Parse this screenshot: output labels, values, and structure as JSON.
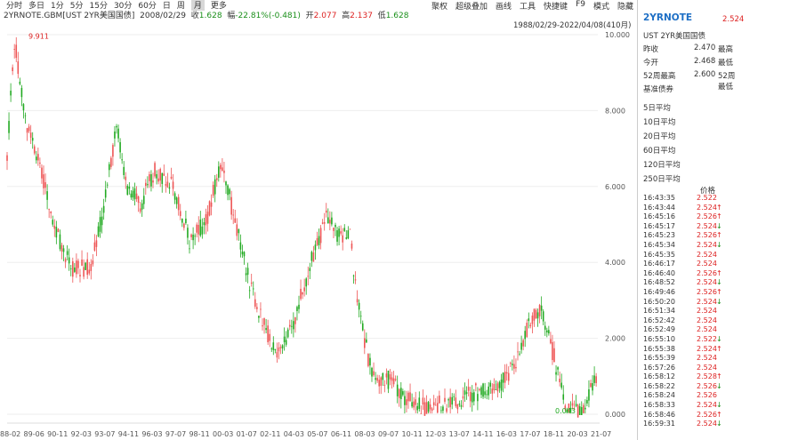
{
  "periods": [
    "分时",
    "多日",
    "1分",
    "5分",
    "15分",
    "30分",
    "60分",
    "日",
    "周",
    "月",
    "更多"
  ],
  "active": "月",
  "tools": [
    "聚权",
    "超级叠加",
    "画线",
    "工具",
    "快捷键",
    "F9",
    "模式",
    "隐藏"
  ],
  "info": {
    "s": "2YRNOTE.GBM[UST 2YR美国国债]",
    "d": "2008/02/29",
    "c": "收",
    "cv": "1.628",
    "f": "幅",
    "fv": "-22.81%(-0.481)",
    "o": "开",
    "ov": "2.077",
    "h": "高",
    "hv": "2.137",
    "l": "低",
    "lv": "1.628"
  },
  "range": "1988/02/29-2022/04/08(410月)",
  "chart_data": {
    "type": "candlestick",
    "yticks": [
      0,
      2,
      4,
      6,
      8,
      10
    ],
    "ylabels": [
      "0.000",
      "2.000",
      "4.000",
      "6.000",
      "8.000",
      "10.000"
    ],
    "xlabels": [
      "88-02",
      "89-06",
      "90-11",
      "92-03",
      "93-07",
      "94-11",
      "96-03",
      "97-07",
      "98-11",
      "00-03",
      "01-07",
      "02-11",
      "04-03",
      "05-07",
      "06-11",
      "08-03",
      "09-07",
      "10-11",
      "12-03",
      "13-07",
      "14-11",
      "16-03",
      "17-07",
      "18-11",
      "20-03",
      "21-07"
    ],
    "max": "9.911",
    "min": "0.043"
  },
  "side": {
    "sym": "2YRNOTE",
    "price": "2.524",
    "name": "UST 2YR美国国债",
    "q": [
      {
        "a": "昨收",
        "b": "2.470",
        "c": "最高"
      },
      {
        "a": "今开",
        "b": "2.468",
        "c": "最低"
      },
      {
        "a": "52周最高",
        "b": "2.600",
        "c": "52周最低"
      },
      {
        "a": "基准债券",
        "b": "",
        "c": ""
      }
    ],
    "avgs": [
      "5日平均",
      "10日平均",
      "20日平均",
      "60日平均",
      "120日平均",
      "250日平均"
    ],
    "ph": "价格",
    "ticks": [
      [
        "16:43:35",
        "2.522",
        ""
      ],
      [
        "16:43:44",
        "2.524",
        "u"
      ],
      [
        "16:45:16",
        "2.526",
        "u"
      ],
      [
        "16:45:17",
        "2.524",
        "d"
      ],
      [
        "16:45:23",
        "2.526",
        "u"
      ],
      [
        "16:45:34",
        "2.524",
        "d"
      ],
      [
        "16:45:35",
        "2.524",
        ""
      ],
      [
        "16:46:17",
        "2.524",
        ""
      ],
      [
        "16:46:40",
        "2.526",
        "u"
      ],
      [
        "16:48:52",
        "2.524",
        "d"
      ],
      [
        "16:49:46",
        "2.526",
        "u"
      ],
      [
        "16:50:20",
        "2.524",
        "d"
      ],
      [
        "16:51:34",
        "2.524",
        ""
      ],
      [
        "16:52:42",
        "2.524",
        ""
      ],
      [
        "16:52:49",
        "2.524",
        ""
      ],
      [
        "16:55:10",
        "2.522",
        "d"
      ],
      [
        "16:55:38",
        "2.524",
        "u"
      ],
      [
        "16:55:39",
        "2.524",
        ""
      ],
      [
        "16:57:26",
        "2.524",
        ""
      ],
      [
        "16:58:12",
        "2.528",
        "u"
      ],
      [
        "16:58:22",
        "2.526",
        "d"
      ],
      [
        "16:58:24",
        "2.526",
        ""
      ],
      [
        "16:58:33",
        "2.524",
        "d"
      ],
      [
        "16:58:46",
        "2.526",
        "u"
      ],
      [
        "16:59:31",
        "2.524",
        "d"
      ]
    ]
  }
}
